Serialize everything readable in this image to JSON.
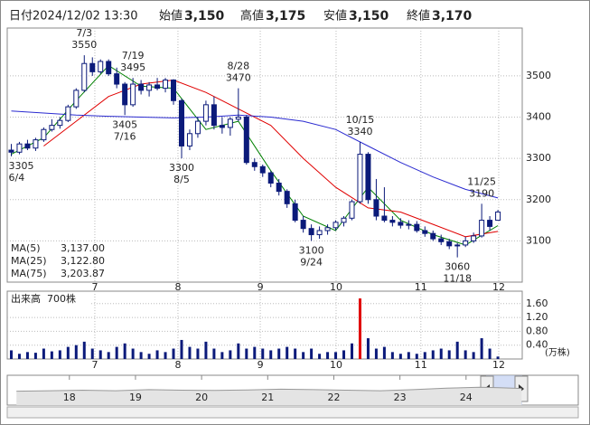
{
  "header": {
    "date_label": "日付",
    "datetime": "2024/12/02 13:30",
    "items": [
      {
        "name": "始値",
        "value": 3150,
        "value_label": "3,150",
        "color": "#000000"
      },
      {
        "name": "高値",
        "value": 3175,
        "value_label": "3,175",
        "color": "#e00000"
      },
      {
        "name": "安値",
        "value": 3150,
        "value_label": "3,150",
        "color": "#008000"
      },
      {
        "name": "終値",
        "value": 3170,
        "value_label": "3,170",
        "color": "#000000"
      }
    ]
  },
  "chart_data": [
    {
      "type": "candlestick",
      "x": [
        0,
        2,
        4,
        6,
        8,
        10,
        12,
        14,
        16,
        18,
        20,
        22,
        24,
        26,
        28,
        30,
        32,
        34,
        36,
        38,
        40,
        42,
        44,
        46,
        48,
        50,
        52,
        54,
        56,
        58,
        60,
        62,
        64,
        66,
        68,
        70,
        72,
        74,
        76,
        78,
        80,
        82,
        84,
        86,
        88,
        90,
        92,
        94,
        96,
        98,
        100,
        102,
        104,
        106,
        108,
        110,
        112,
        114,
        116,
        118,
        120
      ],
      "open": [
        3320,
        3315,
        3335,
        3325,
        3345,
        3370,
        3380,
        3392,
        3425,
        3465,
        3530,
        3510,
        3535,
        3505,
        3480,
        3430,
        3480,
        3465,
        3478,
        3470,
        3490,
        3440,
        3330,
        3360,
        3390,
        3430,
        3380,
        3375,
        3395,
        3400,
        3290,
        3280,
        3265,
        3240,
        3220,
        3190,
        3150,
        3130,
        3115,
        3125,
        3132,
        3145,
        3155,
        3195,
        3310,
        3200,
        3160,
        3150,
        3145,
        3138,
        3140,
        3125,
        3118,
        3105,
        3098,
        3088,
        3090,
        3100,
        3112,
        3150,
        3150
      ],
      "high": [
        3335,
        3340,
        3345,
        3350,
        3375,
        3395,
        3400,
        3430,
        3470,
        3550,
        3545,
        3540,
        3540,
        3520,
        3485,
        3495,
        3490,
        3485,
        3495,
        3495,
        3492,
        3445,
        3370,
        3400,
        3440,
        3450,
        3400,
        3400,
        3470,
        3405,
        3300,
        3285,
        3270,
        3250,
        3225,
        3200,
        3160,
        3140,
        3135,
        3140,
        3150,
        3160,
        3200,
        3340,
        3315,
        3250,
        3230,
        3160,
        3155,
        3150,
        3148,
        3135,
        3125,
        3115,
        3105,
        3095,
        3110,
        3120,
        3190,
        3160,
        3175
      ],
      "low": [
        3305,
        3310,
        3320,
        3318,
        3340,
        3365,
        3372,
        3388,
        3420,
        3460,
        3500,
        3505,
        3500,
        3470,
        3405,
        3425,
        3455,
        3450,
        3465,
        3460,
        3430,
        3300,
        3320,
        3350,
        3380,
        3370,
        3360,
        3355,
        3390,
        3285,
        3270,
        3255,
        3230,
        3210,
        3180,
        3145,
        3120,
        3100,
        3105,
        3115,
        3125,
        3135,
        3150,
        3190,
        3190,
        3150,
        3145,
        3135,
        3130,
        3128,
        3120,
        3110,
        3100,
        3090,
        3080,
        3060,
        3085,
        3095,
        3108,
        3125,
        3150
      ],
      "close": [
        3315,
        3335,
        3325,
        3345,
        3370,
        3380,
        3392,
        3425,
        3465,
        3530,
        3510,
        3535,
        3505,
        3480,
        3430,
        3480,
        3465,
        3478,
        3470,
        3490,
        3440,
        3330,
        3360,
        3390,
        3430,
        3380,
        3375,
        3395,
        3400,
        3290,
        3280,
        3265,
        3240,
        3220,
        3190,
        3150,
        3130,
        3115,
        3125,
        3132,
        3145,
        3155,
        3195,
        3310,
        3200,
        3160,
        3150,
        3145,
        3138,
        3140,
        3125,
        3118,
        3105,
        3098,
        3088,
        3090,
        3100,
        3112,
        3150,
        3135,
        3170
      ],
      "up_color": "#ffffff",
      "down_color": "#0b1a7a",
      "xlim": [
        -1,
        126
      ],
      "ylim": [
        3000,
        3616
      ],
      "yticks": [
        3100,
        3200,
        3300,
        3400,
        3500
      ],
      "xticks": [
        {
          "value": 20.6,
          "label": "7"
        },
        {
          "value": 41.1,
          "label": "8"
        },
        {
          "value": 61.4,
          "label": "9"
        },
        {
          "value": 80.1,
          "label": "10"
        },
        {
          "value": 101,
          "label": "11"
        },
        {
          "value": 120.2,
          "label": "12"
        }
      ],
      "grid": true,
      "annotations": [
        {
          "x": 0,
          "date": "6/4",
          "value": 3305,
          "position": "below"
        },
        {
          "x": 18,
          "date": "7/3",
          "value": 3550,
          "position": "above"
        },
        {
          "x": 28,
          "date": "7/16",
          "value": 3405,
          "position": "below"
        },
        {
          "x": 30,
          "date": "7/19",
          "value": 3495,
          "position": "above"
        },
        {
          "x": 42,
          "date": "8/5",
          "value": 3300,
          "position": "below"
        },
        {
          "x": 56,
          "date": "8/28",
          "value": 3470,
          "position": "above"
        },
        {
          "x": 74,
          "date": "9/24",
          "value": 3100,
          "position": "below"
        },
        {
          "x": 86,
          "date": "10/15",
          "value": 3340,
          "position": "above"
        },
        {
          "x": 110,
          "date": "11/18",
          "value": 3060,
          "position": "below"
        },
        {
          "x": 116,
          "date": "11/25",
          "value": 3190,
          "position": "above"
        }
      ],
      "moving_averages": {
        "x": [
          0,
          8,
          16,
          24,
          32,
          40,
          48,
          56,
          64,
          72,
          80,
          88,
          96,
          104,
          112,
          120
        ],
        "series": [
          {
            "name": "MA(5)",
            "color": "#008000",
            "last_value": 3137,
            "last_label": "3,137.00",
            "values": [
              3310,
              3350,
              3440,
              3525,
              3475,
              3470,
              3370,
              3390,
              3270,
              3160,
              3125,
              3230,
              3150,
              3115,
              3090,
              3137
            ]
          },
          {
            "name": "MA(25)",
            "color": "#e00000",
            "last_value": 3122.8,
            "last_label": "3,122.80",
            "values": [
              null,
              3330,
              3390,
              3450,
              3480,
              3490,
              3460,
              3420,
              3380,
              3300,
              3230,
              3180,
              3170,
              3140,
              3110,
              3123
            ]
          },
          {
            "name": "MA(75)",
            "color": "#2a2ad0",
            "last_value": 3203.87,
            "last_label": "3,203.87",
            "values": [
              3415,
              3410,
              3405,
              3402,
              3400,
              3398,
              3400,
              3405,
              3400,
              3390,
              3370,
              3330,
              3290,
              3255,
              3225,
              3204
            ]
          }
        ]
      }
    },
    {
      "type": "bar",
      "title": "出来高",
      "latest": {
        "value": 700,
        "label": "700株"
      },
      "unit": "(万株)",
      "values": [
        0.25,
        0.15,
        0.2,
        0.18,
        0.3,
        0.22,
        0.25,
        0.35,
        0.4,
        0.5,
        0.3,
        0.25,
        0.2,
        0.35,
        0.45,
        0.3,
        0.2,
        0.15,
        0.25,
        0.2,
        0.3,
        0.55,
        0.35,
        0.3,
        0.5,
        0.3,
        0.2,
        0.25,
        0.45,
        0.3,
        0.35,
        0.3,
        0.25,
        0.3,
        0.35,
        0.3,
        0.2,
        0.3,
        0.15,
        0.2,
        0.2,
        0.25,
        0.45,
        1.75,
        0.6,
        0.3,
        0.35,
        0.2,
        0.15,
        0.2,
        0.15,
        0.2,
        0.25,
        0.3,
        0.25,
        0.5,
        0.25,
        0.2,
        0.6,
        0.3,
        0.07
      ],
      "color": "#0b1a7a",
      "peak_color": "#e00000",
      "xlim": [
        -1,
        126
      ],
      "ylim": [
        0,
        1.96
      ],
      "yticks": [
        {
          "value": 0.4,
          "label": "0.40"
        },
        {
          "value": 0.8,
          "label": "0.80"
        },
        {
          "value": 1.2,
          "label": "1.20"
        },
        {
          "value": 1.6,
          "label": "1.60"
        }
      ]
    },
    {
      "type": "area",
      "x": [
        2017.2,
        2017.7,
        2018.2,
        2018.7,
        2019.2,
        2019.7,
        2020.2,
        2020.7,
        2021.2,
        2021.7,
        2022.2,
        2022.7,
        2023.2,
        2023.7,
        2024.2,
        2024.5,
        2024.84
      ],
      "values": [
        2900,
        2950,
        3000,
        2950,
        3050,
        3000,
        2980,
        3020,
        3100,
        3050,
        3000,
        2950,
        3050,
        3200,
        3300,
        3250,
        3170
      ],
      "color": "#999999",
      "xlim": [
        2017.06,
        2024.85
      ],
      "ylim": [
        1500,
        4500
      ],
      "xticks": [
        {
          "value": 2018,
          "label": "18"
        },
        {
          "value": 2019,
          "label": "19"
        },
        {
          "value": 2020,
          "label": "20"
        },
        {
          "value": 2021,
          "label": "21"
        },
        {
          "value": 2022,
          "label": "22"
        },
        {
          "value": 2023,
          "label": "23"
        },
        {
          "value": 2024,
          "label": "24"
        }
      ]
    }
  ]
}
